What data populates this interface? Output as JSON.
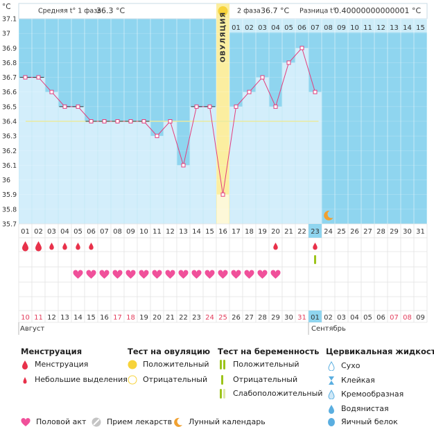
{
  "header": {
    "y_unit": "°C",
    "phase1_label": "Средняя t° 1 фаза",
    "phase1_value": "36.3 °C",
    "phase2_label": "2 фаза",
    "phase2_value": "36.7 °C",
    "diff_label": "Разница t°",
    "diff_value": "0.40000000000001 °C"
  },
  "ovulation_label": "ОВУЛЯЦИЯ",
  "chart_data": {
    "type": "line",
    "ylim": [
      35.7,
      37.1
    ],
    "y_ticks": [
      "37.1",
      "37",
      "36.9",
      "36.8",
      "36.7",
      "36.6",
      "36.5",
      "36.4",
      "36.3",
      "36.2",
      "36.1",
      "36",
      "35.9",
      "35.8",
      "35.7"
    ],
    "cycle_days": [
      "01",
      "02",
      "03",
      "04",
      "05",
      "06",
      "07",
      "08",
      "09",
      "10",
      "11",
      "12",
      "13",
      "14",
      "15",
      "16",
      "17",
      "18",
      "19",
      "20",
      "21",
      "22",
      "23",
      "24",
      "25",
      "26",
      "27",
      "28",
      "29",
      "30",
      "31"
    ],
    "phase2_days": [
      "01",
      "02",
      "03",
      "04",
      "05",
      "06",
      "07",
      "08",
      "09",
      "10",
      "11",
      "12",
      "13",
      "14",
      "15"
    ],
    "dates": [
      "10",
      "11",
      "12",
      "13",
      "14",
      "15",
      "16",
      "17",
      "18",
      "19",
      "20",
      "21",
      "22",
      "23",
      "24",
      "25",
      "26",
      "27",
      "28",
      "29",
      "30",
      "31",
      "01",
      "02",
      "03",
      "04",
      "05",
      "06",
      "07",
      "08",
      "09"
    ],
    "weekend_dates": [
      "10",
      "11",
      "17",
      "18",
      "24",
      "25",
      "31",
      "07",
      "08"
    ],
    "months": [
      "Август",
      "Сентябрь"
    ],
    "temperatures": [
      36.7,
      36.7,
      36.6,
      36.5,
      36.5,
      36.4,
      36.4,
      36.4,
      36.4,
      36.4,
      36.3,
      36.4,
      36.1,
      36.5,
      36.5,
      35.9,
      36.5,
      36.6,
      36.7,
      36.5,
      36.8,
      36.9,
      36.6
    ],
    "coverline": 36.4,
    "ovulation_day": 16,
    "today_day": 23,
    "bleeding_big_days": [
      1,
      2
    ],
    "bleeding_small_days": [
      3,
      4,
      5,
      6,
      20,
      23
    ],
    "pregnancy_test_days": [
      23
    ],
    "intercourse_days": [
      5,
      6,
      7,
      8,
      9,
      10,
      11,
      12,
      13,
      14,
      15,
      16,
      17,
      18,
      19,
      20
    ],
    "moon_day": 24,
    "colors": {
      "chart_bg": "#8fd5ef",
      "bar_fill": "#d3eefb",
      "line": "#e33d7c",
      "ovulation": "#fbeea0",
      "coverline": "#e9eaa0",
      "blood": "#e8314a",
      "heart": "#f0509a",
      "moon": "#f0a030",
      "test_green": "#9cc41a"
    }
  },
  "legend": {
    "menstruation": {
      "title": "Менструация",
      "items": [
        "Менструация",
        "Небольшие выделения"
      ]
    },
    "ovulation_test": {
      "title": "Тест на овуляцию",
      "items": [
        "Положительный",
        "Отрицательный"
      ]
    },
    "pregnancy_test": {
      "title": "Тест на беременность",
      "items": [
        "Положительный",
        "Отрицательный",
        "Слабоположительный"
      ]
    },
    "cervical": {
      "title": "Цервикальная жидкость",
      "items": [
        "Сухо",
        "Клейкая",
        "Кремообразная",
        "Водянистая",
        "Яичный белок"
      ]
    },
    "bottom": [
      "Половой акт",
      "Прием лекарств",
      "Лунный календарь"
    ]
  }
}
